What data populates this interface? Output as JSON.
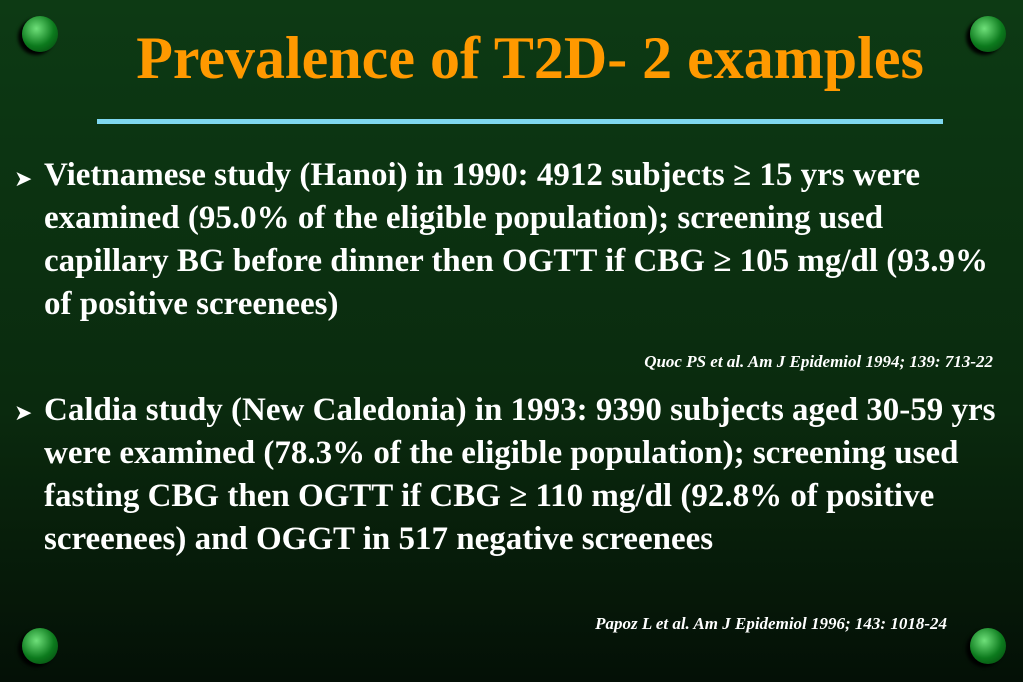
{
  "header": {
    "title": "Prevalence of T2D- 2 examples"
  },
  "bullets": [
    {
      "text": "Vietnamese study (Hanoi) in 1990: 4912 subjects ≥ 15 yrs were examined (95.0% of the eligible population); screening used capillary BG before dinner then OGTT if CBG ≥ 105 mg/dl (93.9% of positive screenees)",
      "reference": "Quoc PS et al. Am J Epidemiol 1994; 139: 713-22"
    },
    {
      "text": "Caldia study (New Caledonia) in 1993: 9390 subjects aged 30-59 yrs were examined (78.3% of the eligible population); screening used fasting CBG then OGTT if CBG ≥ 110 mg/dl (92.8% of positive screenees) and OGGT in 517 negative screenees",
      "reference": "Papoz L et al. Am J Epidemiol 1996; 143: 1018-24"
    }
  ]
}
